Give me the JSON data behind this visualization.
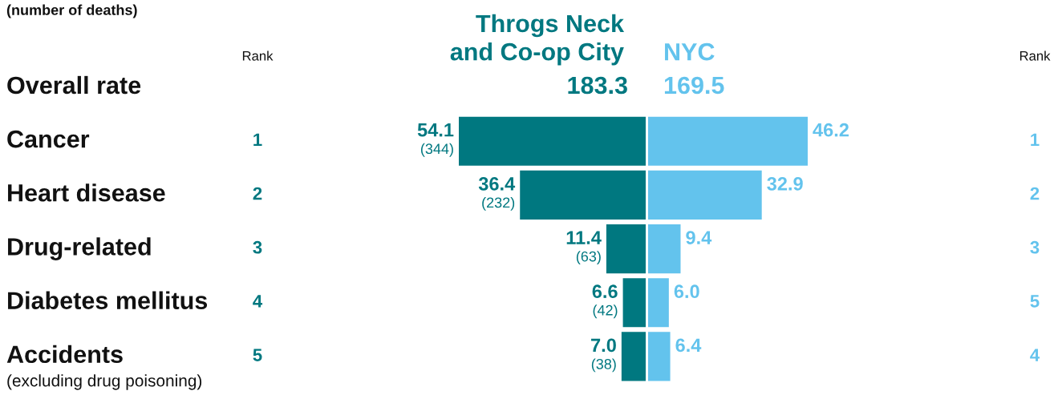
{
  "chart_data": [
    {
      "type": "bar",
      "orientation": "horizontal",
      "subtitle": "(number of deaths)",
      "categories": [
        "Overall rate",
        "Cancer",
        "Heart disease",
        "Drug-related",
        "Diabetes mellitus",
        "Accidents\n(excluding drug poisoning)"
      ],
      "series": [
        {
          "name": "Throgs Neck\nand Co-op City",
          "color": "#007880",
          "values": [
            null,
            54.1,
            36.4,
            11.4,
            6.6,
            7.0
          ],
          "value_labels": [
            "183.3",
            "54.1\n(344)",
            "36.4\n(232)",
            "11.4\n(63)",
            "6.6\n(42)",
            "7.0\n(38)"
          ]
        }
      ],
      "tick_labels": "y",
      "annotations": [
        "Rank",
        "1",
        "2",
        "3",
        "4",
        "5"
      ]
    },
    {
      "type": "bar",
      "orientation": "horizontal",
      "categories": [
        null,
        null,
        null,
        null,
        null,
        null
      ],
      "series": [
        {
          "name": "NYC",
          "color": "#63c3ed",
          "values": [
            null,
            46.2,
            32.9,
            9.4,
            6.0,
            6.4
          ],
          "value_labels": [
            "169.5",
            "46.2",
            "32.9",
            "9.4",
            "6.0",
            "6.4"
          ]
        }
      ],
      "tick_labels": false,
      "annotations": [
        "Rank",
        "1",
        "2",
        "3",
        "5",
        "4"
      ]
    }
  ]
}
